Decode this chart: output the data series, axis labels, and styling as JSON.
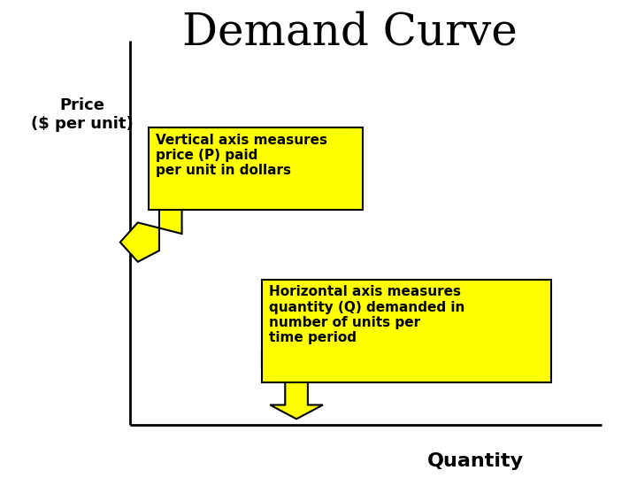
{
  "title": "Demand Curve",
  "title_fontsize": 36,
  "ylabel": "Price\n($ per unit)",
  "ylabel_fontsize": 13,
  "xlabel": "Quantity",
  "xlabel_fontsize": 16,
  "bg_color": "#ffffff",
  "axis_color": "#000000",
  "box1_text": "Vertical axis measures\nprice (P) paid\nper unit in dollars",
  "box2_text": "Horizontal axis measures\nquantity (Q) demanded in\nnumber of units per\ntime period",
  "box_facecolor": "#ffff00",
  "box_edgecolor": "#000000",
  "arrow_facecolor": "#ffff00",
  "arrow_edgecolor": "#000000",
  "text_fontsize": 11,
  "axis_linewidth": 2
}
